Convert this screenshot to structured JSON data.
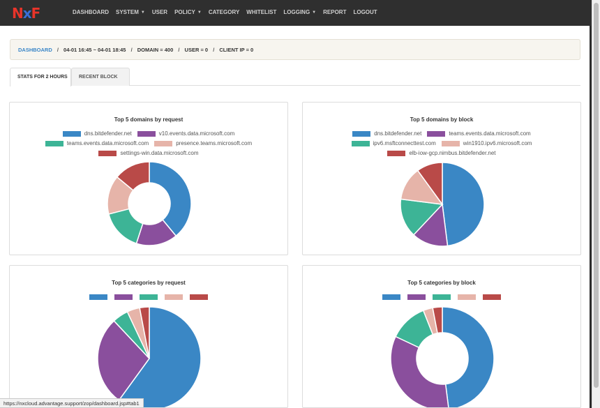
{
  "logo": {
    "part1": "N",
    "part2": "x",
    "part3": "F"
  },
  "nav": {
    "items": [
      {
        "label": "DASHBOARD",
        "caret": false
      },
      {
        "label": "SYSTEM",
        "caret": true
      },
      {
        "label": "USER",
        "caret": false
      },
      {
        "label": "POLICY",
        "caret": true
      },
      {
        "label": "CATEGORY",
        "caret": false
      },
      {
        "label": "WHITELIST",
        "caret": false
      },
      {
        "label": "LOGGING",
        "caret": true
      },
      {
        "label": "REPORT",
        "caret": false
      },
      {
        "label": "LOGOUT",
        "caret": false
      }
    ]
  },
  "breadcrumb": {
    "home": "DASHBOARD",
    "range": "04-01 16:45 ~ 04-01 18:45",
    "domain": "DOMAIN = 400",
    "user": "USER = 0",
    "client_ip": "CLIENT IP = 0"
  },
  "tabs": [
    {
      "label": "STATS FOR 2 HOURS",
      "active": true
    },
    {
      "label": "RECENT BLOCK",
      "active": false
    }
  ],
  "colors": [
    "#3a87c5",
    "#8a4f9d",
    "#3db496",
    "#e6b4a9",
    "#b94a48"
  ],
  "chart_data": [
    {
      "type": "pie",
      "title": "Top 5 domains by request",
      "categories": [
        "dns.bitdefender.net",
        "v10.events.data.microsoft.com",
        "teams.events.data.microsoft.com",
        "presence.teams.microsoft.com",
        "settings-win.data.microsoft.com"
      ],
      "values": [
        39,
        16,
        16,
        15,
        14
      ],
      "donut": true
    },
    {
      "type": "pie",
      "title": "Top 5 domains by block",
      "categories": [
        "dns.bitdefender.net",
        "teams.events.data.microsoft.com",
        "ipv6.msftconnecttest.com",
        "win1910.ipv6.microsoft.com",
        "elb-iow-gcp.nimbus.bitdefender.net"
      ],
      "values": [
        48,
        14,
        15,
        13,
        10
      ],
      "donut": false
    },
    {
      "type": "pie",
      "title": "Top 5 categories by request",
      "categories": [
        "",
        "",
        "",
        "",
        ""
      ],
      "values": [
        60,
        28,
        5,
        4,
        3
      ],
      "donut": false
    },
    {
      "type": "pie",
      "title": "Top 5 categories by block",
      "categories": [
        "",
        "",
        "",
        "",
        ""
      ],
      "values": [
        48,
        34,
        12,
        3,
        3
      ],
      "donut": true
    }
  ],
  "status_bar": {
    "url": "https://nxcloud.advantage.support/zop/dashboard.jsp#tab1"
  }
}
